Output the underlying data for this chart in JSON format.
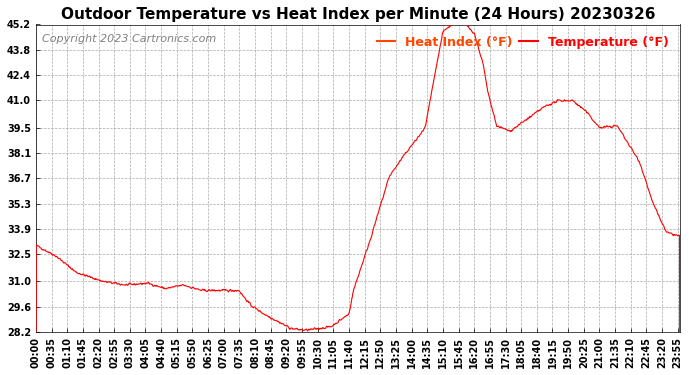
{
  "title": "Outdoor Temperature vs Heat Index per Minute (24 Hours) 20230326",
  "copyright": "Copyright 2023 Cartronics.com",
  "legend_heat": "Heat Index (°F)",
  "legend_temp": "Temperature (°F)",
  "legend_heat_color": "#FF4500",
  "legend_temp_color": "#FF0000",
  "line_color": "#FF0000",
  "background_color": "#FFFFFF",
  "grid_color": "#AAAAAA",
  "title_color": "#000000",
  "copyright_color": "#808080",
  "ylim": [
    28.2,
    45.2
  ],
  "yticks": [
    28.2,
    29.6,
    31.0,
    32.5,
    33.9,
    35.3,
    36.7,
    38.1,
    39.5,
    41.0,
    42.4,
    43.8,
    45.2
  ],
  "xtick_labels": [
    "00:00",
    "00:35",
    "01:10",
    "01:45",
    "02:20",
    "02:55",
    "03:30",
    "04:05",
    "04:40",
    "05:15",
    "05:50",
    "06:25",
    "07:00",
    "07:35",
    "08:10",
    "08:45",
    "09:20",
    "09:55",
    "10:30",
    "11:05",
    "11:40",
    "12:15",
    "12:50",
    "13:25",
    "14:00",
    "14:35",
    "15:10",
    "15:45",
    "16:20",
    "16:55",
    "17:30",
    "18:05",
    "18:40",
    "19:15",
    "19:50",
    "20:25",
    "21:00",
    "21:35",
    "22:10",
    "22:45",
    "23:20",
    "23:55"
  ],
  "num_points": 1440,
  "title_fontsize": 11,
  "copyright_fontsize": 8,
  "tick_fontsize": 7,
  "legend_fontsize": 9
}
